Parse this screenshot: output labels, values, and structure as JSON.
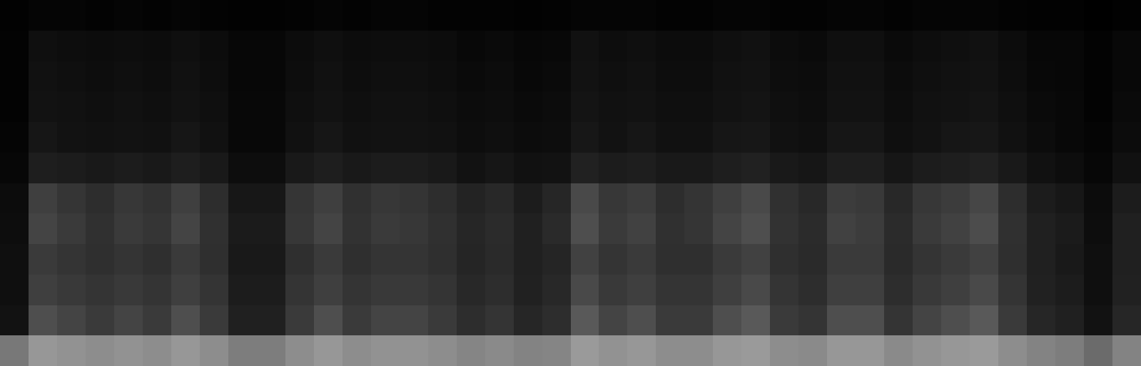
{
  "chart_data": {
    "type": "heatmap",
    "tick_labels": false,
    "grid": false,
    "z": [
      [
        60,
        72,
        70,
        68,
        70,
        68,
        72,
        68,
        62,
        62,
        68,
        72,
        68,
        70,
        70,
        68,
        65,
        67,
        64,
        65,
        73,
        70,
        72,
        68,
        68,
        72,
        73,
        68,
        67,
        72,
        72,
        67,
        70,
        72,
        73,
        68,
        64,
        62,
        55,
        64
      ],
      [
        12,
        44,
        40,
        36,
        40,
        36,
        44,
        36,
        20,
        20,
        36,
        44,
        36,
        40,
        40,
        36,
        28,
        32,
        24,
        28,
        48,
        40,
        44,
        36,
        36,
        44,
        48,
        36,
        32,
        44,
        44,
        32,
        40,
        44,
        48,
        36,
        24,
        20,
        12,
        24
      ],
      [
        10,
        38,
        35,
        32,
        35,
        32,
        38,
        32,
        18,
        18,
        32,
        38,
        32,
        35,
        35,
        32,
        25,
        28,
        21,
        25,
        42,
        35,
        38,
        32,
        32,
        38,
        42,
        32,
        28,
        38,
        38,
        28,
        35,
        38,
        42,
        32,
        21,
        18,
        10,
        21
      ],
      [
        10,
        36,
        32,
        29,
        32,
        29,
        36,
        29,
        16,
        16,
        29,
        36,
        29,
        32,
        32,
        29,
        23,
        26,
        20,
        23,
        39,
        32,
        36,
        29,
        29,
        36,
        39,
        29,
        26,
        36,
        36,
        26,
        32,
        36,
        39,
        29,
        20,
        16,
        10,
        20
      ],
      [
        9,
        40,
        36,
        30,
        36,
        33,
        40,
        30,
        17,
        17,
        34,
        40,
        31,
        36,
        34,
        30,
        24,
        27,
        20,
        26,
        44,
        36,
        39,
        30,
        33,
        40,
        44,
        31,
        27,
        39,
        37,
        27,
        36,
        39,
        43,
        30,
        20,
        17,
        9,
        20
      ],
      [
        8,
        38,
        33,
        28,
        34,
        31,
        38,
        28,
        15,
        15,
        33,
        38,
        30,
        34,
        32,
        28,
        22,
        25,
        18,
        24,
        42,
        34,
        37,
        28,
        32,
        38,
        42,
        30,
        25,
        37,
        35,
        25,
        34,
        37,
        41,
        28,
        18,
        15,
        8,
        18
      ],
      [
        5,
        19,
        18,
        16,
        18,
        16,
        19,
        16,
        9,
        9,
        16,
        19,
        16,
        18,
        18,
        16,
        12,
        14,
        11,
        12,
        21,
        18,
        19,
        16,
        16,
        19,
        21,
        16,
        14,
        19,
        19,
        14,
        18,
        19,
        21,
        16,
        11,
        9,
        5,
        11
      ],
      [
        4,
        14,
        12,
        11,
        12,
        11,
        14,
        11,
        6,
        6,
        11,
        14,
        11,
        12,
        12,
        11,
        9,
        10,
        8,
        9,
        15,
        12,
        14,
        11,
        11,
        14,
        15,
        11,
        10,
        14,
        14,
        10,
        12,
        14,
        15,
        11,
        8,
        6,
        4,
        8
      ],
      [
        3,
        12,
        11,
        10,
        11,
        10,
        12,
        10,
        6,
        6,
        10,
        12,
        10,
        11,
        11,
        10,
        8,
        9,
        7,
        8,
        13,
        11,
        12,
        10,
        10,
        12,
        13,
        10,
        9,
        12,
        12,
        9,
        11,
        12,
        13,
        10,
        7,
        6,
        3,
        7
      ],
      [
        3,
        11,
        10,
        9,
        10,
        9,
        11,
        9,
        5,
        5,
        9,
        11,
        9,
        10,
        10,
        9,
        7,
        8,
        6,
        7,
        12,
        10,
        11,
        9,
        9,
        11,
        12,
        9,
        8,
        11,
        11,
        8,
        10,
        11,
        12,
        9,
        6,
        5,
        3,
        6
      ],
      [
        3,
        10,
        9,
        8,
        9,
        8,
        10,
        8,
        5,
        5,
        8,
        10,
        8,
        9,
        9,
        8,
        6,
        7,
        5,
        6,
        11,
        9,
        10,
        8,
        8,
        10,
        11,
        8,
        7,
        10,
        10,
        7,
        9,
        10,
        11,
        8,
        5,
        5,
        3,
        6
      ],
      [
        2,
        4,
        4,
        3,
        4,
        3,
        4,
        3,
        2,
        2,
        3,
        4,
        3,
        4,
        4,
        3,
        3,
        3,
        2,
        3,
        4,
        4,
        4,
        3,
        3,
        4,
        4,
        3,
        3,
        4,
        4,
        3,
        4,
        4,
        4,
        3,
        2,
        2,
        1,
        2
      ]
    ]
  }
}
